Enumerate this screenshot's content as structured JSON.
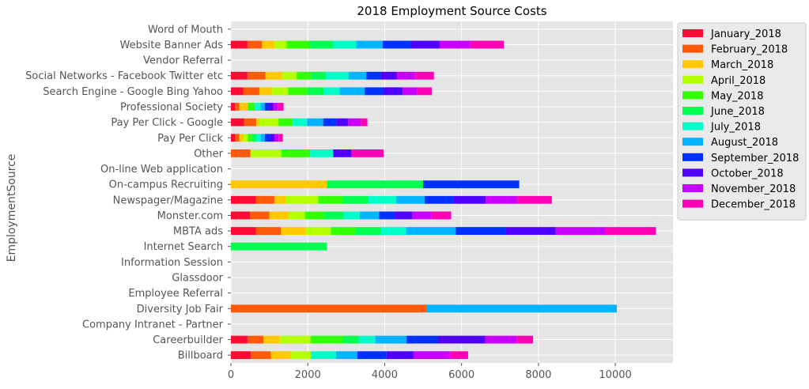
{
  "chart_data": {
    "type": "bar",
    "orientation": "horizontal",
    "stacked": true,
    "title": "2018 Employment Source Costs",
    "xlabel": "",
    "ylabel": "EmploymentSource",
    "xlim": [
      0,
      11500
    ],
    "xticks": [
      0,
      2000,
      4000,
      6000,
      8000,
      10000
    ],
    "grid": true,
    "legend_position": "outside-top-right",
    "categories": [
      "Billboard",
      "Careerbuilder",
      "Company Intranet - Partner",
      "Diversity Job Fair",
      "Employee Referral",
      "Glassdoor",
      "Information Session",
      "Internet Search",
      "MBTA ads",
      "Monster.com",
      "Newspager/Magazine",
      "On-campus Recruiting",
      "On-line Web application",
      "Other",
      "Pay Per Click",
      "Pay Per Click - Google",
      "Professional Society",
      "Search Engine - Google Bing Yahoo",
      "Social Networks - Facebook Twitter etc",
      "Vendor Referral",
      "Website Banner Ads",
      "Word of Mouth"
    ],
    "series": [
      {
        "name": "January_2018",
        "color": "#ff0a32",
        "values": [
          520,
          430,
          0,
          0,
          0,
          0,
          0,
          0,
          650,
          500,
          650,
          0,
          0,
          0,
          110,
          340,
          110,
          320,
          430,
          0,
          430,
          0
        ]
      },
      {
        "name": "February_2018",
        "color": "#ff5a0a",
        "values": [
          520,
          420,
          0,
          5100,
          0,
          0,
          0,
          0,
          650,
          500,
          480,
          0,
          0,
          510,
          110,
          320,
          110,
          420,
          470,
          0,
          380,
          0
        ]
      },
      {
        "name": "March_2018",
        "color": "#ffc800",
        "values": [
          520,
          420,
          0,
          0,
          0,
          0,
          0,
          0,
          650,
          500,
          310,
          2500,
          0,
          0,
          110,
          80,
          220,
          330,
          430,
          0,
          320,
          0
        ]
      },
      {
        "name": "April_2018",
        "color": "#b4ff00",
        "values": [
          520,
          800,
          0,
          0,
          0,
          0,
          0,
          0,
          650,
          430,
          830,
          0,
          0,
          800,
          110,
          500,
          0,
          420,
          380,
          0,
          320,
          0
        ]
      },
      {
        "name": "May_2018",
        "color": "#32ff00",
        "values": [
          0,
          840,
          0,
          0,
          0,
          0,
          0,
          0,
          650,
          500,
          650,
          0,
          0,
          750,
          110,
          370,
          180,
          500,
          380,
          0,
          610,
          0
        ]
      },
      {
        "name": "June_2018",
        "color": "#00ff50",
        "values": [
          0,
          420,
          0,
          0,
          0,
          0,
          0,
          2500,
          650,
          500,
          650,
          2500,
          0,
          0,
          110,
          0,
          0,
          420,
          380,
          0,
          600,
          0
        ]
      },
      {
        "name": "July_2018",
        "color": "#00ffc8",
        "values": [
          650,
          420,
          0,
          0,
          0,
          0,
          0,
          0,
          650,
          420,
          730,
          0,
          0,
          600,
          110,
          370,
          150,
          420,
          590,
          0,
          600,
          0
        ]
      },
      {
        "name": "August_2018",
        "color": "#00b4ff",
        "values": [
          560,
          820,
          0,
          4940,
          0,
          0,
          0,
          0,
          1300,
          500,
          740,
          0,
          0,
          0,
          110,
          420,
          110,
          650,
          460,
          0,
          690,
          0
        ]
      },
      {
        "name": "September_2018",
        "color": "#0032ff",
        "values": [
          760,
          800,
          0,
          0,
          0,
          0,
          0,
          0,
          1300,
          430,
          760,
          2500,
          0,
          0,
          140,
          340,
          110,
          490,
          380,
          0,
          740,
          0
        ]
      },
      {
        "name": "October_2018",
        "color": "#5000ff",
        "values": [
          700,
          1250,
          0,
          0,
          0,
          0,
          0,
          0,
          1300,
          430,
          830,
          0,
          0,
          480,
          110,
          310,
          110,
          500,
          420,
          0,
          740,
          0
        ]
      },
      {
        "name": "November_2018",
        "color": "#c800ff",
        "values": [
          950,
          820,
          0,
          0,
          0,
          0,
          0,
          0,
          1300,
          500,
          820,
          0,
          0,
          0,
          110,
          330,
          120,
          380,
          480,
          0,
          800,
          0
        ]
      },
      {
        "name": "December_2018",
        "color": "#ff00b4",
        "values": [
          470,
          420,
          0,
          0,
          0,
          0,
          0,
          0,
          1300,
          520,
          900,
          0,
          0,
          830,
          110,
          170,
          150,
          380,
          480,
          0,
          870,
          0
        ]
      }
    ]
  }
}
